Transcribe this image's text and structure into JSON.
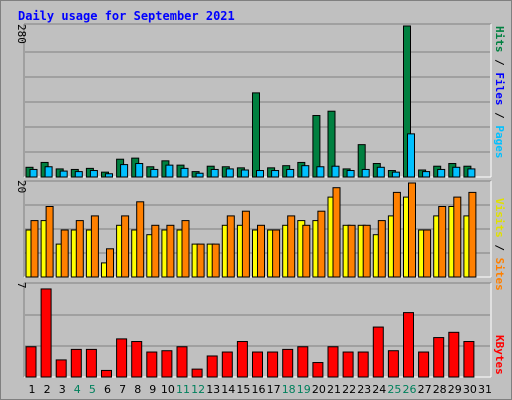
{
  "title": "Daily usage for September 2021",
  "colors": {
    "background": "#c0c0c0",
    "hits": "#008040",
    "files": "#0000ff",
    "pages": "#00c0ff",
    "visits": "#ffff00",
    "sites": "#ff8000",
    "kbytes": "#ff0000",
    "weekend": "#00805c"
  },
  "chart_data": [
    {
      "type": "bar",
      "panel": "hits-files-pages",
      "scale_label": "280",
      "ylim": [
        0,
        280
      ],
      "legend": [
        "Pages",
        "Files",
        "Hits"
      ],
      "categories": [
        "1",
        "2",
        "3",
        "4",
        "5",
        "6",
        "7",
        "8",
        "9",
        "10",
        "11",
        "12",
        "13",
        "14",
        "15",
        "16",
        "17",
        "18",
        "19",
        "20",
        "21",
        "22",
        "23",
        "24",
        "25",
        "26",
        "27",
        "28",
        "29",
        "30",
        "31"
      ],
      "series": [
        {
          "name": "Hits",
          "values": [
            18,
            27,
            15,
            14,
            16,
            9,
            33,
            35,
            19,
            30,
            22,
            10,
            20,
            19,
            17,
            156,
            17,
            21,
            27,
            114,
            122,
            15,
            60,
            25,
            12,
            280,
            13,
            20,
            25,
            20,
            0
          ]
        },
        {
          "name": "Pages",
          "values": [
            14,
            19,
            11,
            10,
            12,
            6,
            23,
            25,
            14,
            22,
            16,
            7,
            14,
            15,
            13,
            12,
            12,
            14,
            21,
            19,
            20,
            12,
            14,
            18,
            9,
            80,
            10,
            14,
            18,
            15,
            0
          ]
        }
      ]
    },
    {
      "type": "bar",
      "panel": "visits-sites",
      "scale_label": "20",
      "ylim": [
        0,
        20
      ],
      "legend": [
        "Sites",
        "Visits"
      ],
      "categories": [
        "1",
        "2",
        "3",
        "4",
        "5",
        "6",
        "7",
        "8",
        "9",
        "10",
        "11",
        "12",
        "13",
        "14",
        "15",
        "16",
        "17",
        "18",
        "19",
        "20",
        "21",
        "22",
        "23",
        "24",
        "25",
        "26",
        "27",
        "28",
        "29",
        "30",
        "31"
      ],
      "series": [
        {
          "name": "Visits",
          "values": [
            10,
            12,
            7,
            10,
            10,
            3,
            11,
            10,
            9,
            10,
            10,
            7,
            7,
            11,
            11,
            10,
            10,
            11,
            12,
            12,
            17,
            11,
            11,
            9,
            13,
            17,
            10,
            13,
            15,
            13,
            0
          ]
        },
        {
          "name": "Sites",
          "values": [
            12,
            15,
            10,
            12,
            13,
            6,
            13,
            16,
            11,
            11,
            12,
            7,
            7,
            13,
            14,
            11,
            10,
            13,
            11,
            14,
            19,
            11,
            11,
            12,
            18,
            20,
            10,
            15,
            17,
            18,
            0
          ]
        }
      ]
    },
    {
      "type": "bar",
      "panel": "kbytes",
      "scale_label": "7",
      "ylim": [
        0,
        7
      ],
      "legend": [
        "KBytes"
      ],
      "categories": [
        "1",
        "2",
        "3",
        "4",
        "5",
        "6",
        "7",
        "8",
        "9",
        "10",
        "11",
        "12",
        "13",
        "14",
        "15",
        "16",
        "17",
        "18",
        "19",
        "20",
        "21",
        "22",
        "23",
        "24",
        "25",
        "26",
        "27",
        "28",
        "29",
        "30",
        "31"
      ],
      "series": [
        {
          "name": "KBytes",
          "values": [
            2.3,
            6.7,
            1.3,
            2.1,
            2.1,
            0.5,
            2.9,
            2.7,
            1.9,
            2.0,
            2.3,
            0.6,
            1.6,
            1.9,
            2.7,
            1.9,
            1.9,
            2.1,
            2.3,
            1.1,
            2.3,
            1.9,
            1.9,
            3.8,
            2.0,
            4.9,
            1.9,
            3.0,
            3.4,
            2.7,
            0
          ]
        }
      ]
    }
  ],
  "x_labels": [
    "1",
    "2",
    "3",
    "4",
    "5",
    "6",
    "7",
    "8",
    "9",
    "10",
    "11",
    "12",
    "13",
    "14",
    "15",
    "16",
    "17",
    "18",
    "19",
    "20",
    "21",
    "22",
    "23",
    "24",
    "25",
    "26",
    "27",
    "28",
    "29",
    "30",
    "31"
  ],
  "weekend_days": [
    4,
    5,
    11,
    12,
    18,
    19,
    25,
    26
  ]
}
